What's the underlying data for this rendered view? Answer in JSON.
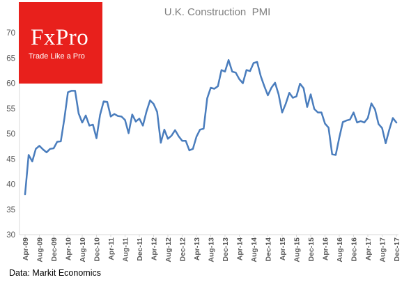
{
  "logo": {
    "brand": "FxPro",
    "tagline": "Trade Like a Pro",
    "background_color": "#e8201c"
  },
  "source": "Data: Markit Economics",
  "chart_data": {
    "type": "line",
    "title": "U.K. Construction  PMI",
    "xlabel": "",
    "ylabel": "",
    "ylim": [
      30,
      70
    ],
    "yticks": [
      30,
      35,
      40,
      45,
      50,
      55,
      60,
      65,
      70
    ],
    "grid": false,
    "line_color": "#4a7dbd",
    "x_tick_labels": [
      "Apr-09",
      "Aug-09",
      "Dec-09",
      "Apr-10",
      "Aug-10",
      "Dec-10",
      "Apr-11",
      "Aug-11",
      "Dec-11",
      "Apr-12",
      "Aug-12",
      "Dec-12",
      "Apr-13",
      "Aug-13",
      "Dec-13",
      "Apr-14",
      "Aug-14",
      "Dec-14",
      "Apr-15",
      "Aug-15",
      "Dec-15",
      "Apr-16",
      "Aug-16",
      "Dec-16",
      "Apr-17",
      "Aug-17",
      "Dec-17"
    ],
    "series": [
      {
        "name": "U.K. Construction PMI",
        "start": "Apr-09",
        "frequency": "monthly",
        "values": [
          38.0,
          45.8,
          44.5,
          47.0,
          47.6,
          46.9,
          46.3,
          47.0,
          47.1,
          48.4,
          48.5,
          53.0,
          58.2,
          58.5,
          58.5,
          54.0,
          52.2,
          53.6,
          51.6,
          51.8,
          49.1,
          53.7,
          56.4,
          56.3,
          53.4,
          53.9,
          53.5,
          53.4,
          52.7,
          50.1,
          53.8,
          52.4,
          53.0,
          51.6,
          54.4,
          56.6,
          55.9,
          54.3,
          48.2,
          50.8,
          49.0,
          49.6,
          50.7,
          49.5,
          48.6,
          48.6,
          46.7,
          47.0,
          49.4,
          50.8,
          51.0,
          57.0,
          59.1,
          58.9,
          59.4,
          62.6,
          62.3,
          64.6,
          62.3,
          62.1,
          60.8,
          60.0,
          62.6,
          62.4,
          64.0,
          64.2,
          61.4,
          59.4,
          57.6,
          59.1,
          60.1,
          57.8,
          54.2,
          55.9,
          58.1,
          57.1,
          57.4,
          59.9,
          59.0,
          55.3,
          57.8,
          54.9,
          54.2,
          54.2,
          52.0,
          51.2,
          45.9,
          45.8,
          49.2,
          52.3,
          52.6,
          52.8,
          54.2,
          52.2,
          52.5,
          52.2,
          53.1,
          56.0,
          54.8,
          51.9,
          51.1,
          48.1,
          50.8,
          53.1,
          52.2
        ]
      }
    ]
  }
}
